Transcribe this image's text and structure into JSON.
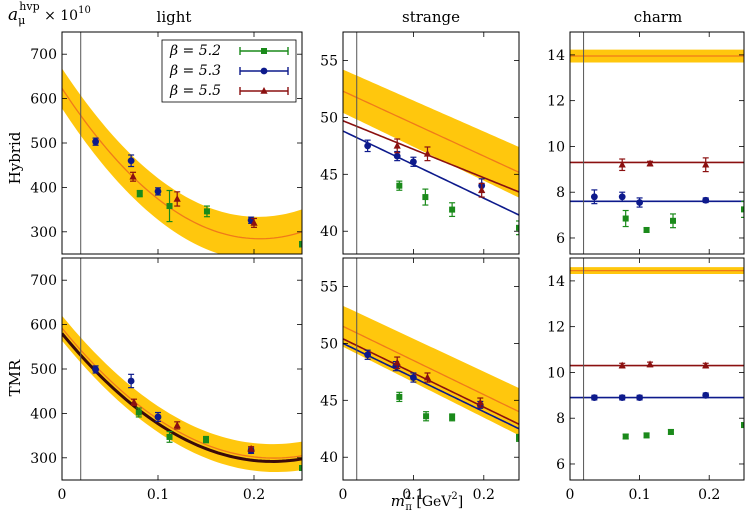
{
  "figure": {
    "corner_label": {
      "base": "a",
      "sub": "μ",
      "sup": "hvp",
      "tail": " × 10",
      "exp": "10"
    },
    "xlabel": {
      "base": "m",
      "sup": "2",
      "sub": "π",
      "unit": " [GeV",
      "unit_sup": "2",
      "unit_close": "]"
    },
    "column_titles": [
      "light",
      "strange",
      "charm"
    ],
    "row_labels": [
      "Hybrid",
      "TMR"
    ],
    "colors": {
      "b52": "#1a8a1a",
      "b53": "#0d1a8c",
      "b55": "#8b1010",
      "band": "#ffc400",
      "fit": "#f07a1a",
      "dark": "#3a0a0a"
    },
    "legend": [
      {
        "label": "β = 5.2",
        "series": "b52"
      },
      {
        "label": "β = 5.3",
        "series": "b53"
      },
      {
        "label": "β = 5.5",
        "series": "b55"
      }
    ],
    "physical_point_x": 0.0195
  },
  "chart_data": [
    {
      "id": "hybrid-light",
      "type": "scatter",
      "title": "light",
      "row": "Hybrid",
      "xlim": [
        0,
        0.25
      ],
      "ylim": [
        250,
        750
      ],
      "yticks": [
        300,
        400,
        500,
        600,
        700
      ],
      "xticks": [],
      "xtick_labels": [],
      "series": [
        {
          "name": "β = 5.2",
          "key": "b52",
          "marker": "square",
          "points": [
            [
              0.081,
              386,
              7
            ],
            [
              0.112,
              358,
              35
            ],
            [
              0.151,
              346,
              12
            ],
            [
              0.25,
              272,
              6
            ]
          ]
        },
        {
          "name": "β = 5.3",
          "key": "b53",
          "marker": "circle",
          "points": [
            [
              0.035,
              503,
              8
            ],
            [
              0.072,
              460,
              13
            ],
            [
              0.1,
              391,
              8
            ],
            [
              0.197,
              326,
              7
            ]
          ]
        },
        {
          "name": "β = 5.5",
          "key": "b55",
          "marker": "triangle",
          "points": [
            [
              0.074,
              424,
              10
            ],
            [
              0.12,
              374,
              16
            ],
            [
              0.2,
              320,
              10
            ]
          ]
        }
      ],
      "fits": [
        {
          "kind": "band",
          "c": [
            623,
            -3290,
            7990
          ],
          "width": [
            45,
            15,
            30
          ]
        }
      ]
    },
    {
      "id": "hybrid-strange",
      "type": "scatter",
      "title": "strange",
      "row": "Hybrid",
      "xlim": [
        0,
        0.25
      ],
      "ylim": [
        38,
        57.5
      ],
      "yticks": [
        40,
        45,
        50,
        55
      ],
      "xticks": [],
      "xtick_labels": [],
      "series": [
        {
          "name": "β = 5.2",
          "key": "b52",
          "marker": "square",
          "points": [
            [
              0.08,
              44.0,
              0.4
            ],
            [
              0.117,
              43.0,
              0.7
            ],
            [
              0.155,
              41.9,
              0.6
            ],
            [
              0.25,
              40.3,
              0.6
            ]
          ]
        },
        {
          "name": "β = 5.3",
          "key": "b53",
          "marker": "circle",
          "points": [
            [
              0.035,
              47.5,
              0.5
            ],
            [
              0.077,
              46.6,
              0.4
            ],
            [
              0.1,
              46.1,
              0.4
            ],
            [
              0.197,
              44.0,
              0.6
            ]
          ]
        },
        {
          "name": "β = 5.5",
          "key": "b55",
          "marker": "triangle",
          "points": [
            [
              0.077,
              47.5,
              0.6
            ],
            [
              0.12,
              46.8,
              0.6
            ],
            [
              0.197,
              43.6,
              0.6
            ]
          ]
        }
      ],
      "fits": [
        {
          "kind": "band",
          "c": [
            52.3,
            -28.5,
            0
          ],
          "width": [
            1.9,
            1.3,
            0
          ]
        },
        {
          "kind": "line",
          "key": "b55",
          "c": [
            49.7,
            -25.0,
            0
          ]
        },
        {
          "kind": "line",
          "key": "b53",
          "c": [
            48.8,
            -29.5,
            0
          ]
        }
      ]
    },
    {
      "id": "hybrid-charm",
      "type": "scatter",
      "title": "charm",
      "row": "Hybrid",
      "xlim": [
        0,
        0.25
      ],
      "ylim": [
        5.3,
        15
      ],
      "yticks": [
        6,
        8,
        10,
        12,
        14
      ],
      "xticks": [],
      "xtick_labels": [],
      "series": [
        {
          "name": "β = 5.2",
          "key": "b52",
          "marker": "square",
          "points": [
            [
              0.08,
              6.85,
              0.35
            ],
            [
              0.11,
              6.35,
              0.1
            ],
            [
              0.148,
              6.75,
              0.3
            ],
            [
              0.25,
              7.25,
              0.35
            ]
          ]
        },
        {
          "name": "β = 5.3",
          "key": "b53",
          "marker": "circle",
          "points": [
            [
              0.035,
              7.8,
              0.3
            ],
            [
              0.075,
              7.8,
              0.2
            ],
            [
              0.1,
              7.55,
              0.2
            ],
            [
              0.195,
              7.65,
              0.1
            ]
          ]
        },
        {
          "name": "β = 5.5",
          "key": "b55",
          "marker": "triangle",
          "points": [
            [
              0.075,
              9.2,
              0.25
            ],
            [
              0.115,
              9.25,
              0.1
            ],
            [
              0.195,
              9.2,
              0.3
            ]
          ]
        }
      ],
      "fits": [
        {
          "kind": "band",
          "c": [
            13.95,
            0,
            0
          ],
          "width": [
            0.28,
            0,
            0
          ]
        },
        {
          "kind": "line",
          "key": "b55",
          "c": [
            9.3,
            0,
            0
          ]
        },
        {
          "kind": "line",
          "key": "b53",
          "c": [
            7.6,
            0,
            0
          ]
        }
      ]
    },
    {
      "id": "tmr-light",
      "type": "scatter",
      "title": "",
      "row": "TMR",
      "xlim": [
        0,
        0.25
      ],
      "ylim": [
        250,
        750
      ],
      "yticks": [
        300,
        400,
        500,
        600,
        700
      ],
      "xticks": [
        0,
        0.1,
        0.2
      ],
      "xtick_labels": [
        "0",
        "0.1",
        "0.2"
      ],
      "series": [
        {
          "name": "β = 5.2",
          "key": "b52",
          "marker": "square",
          "points": [
            [
              0.08,
              402,
              10
            ],
            [
              0.112,
              347,
              12
            ],
            [
              0.15,
              341,
              7
            ],
            [
              0.25,
              277,
              5
            ]
          ]
        },
        {
          "name": "β = 5.3",
          "key": "b53",
          "marker": "circle",
          "points": [
            [
              0.035,
              499,
              8
            ],
            [
              0.072,
              473,
              15
            ],
            [
              0.1,
              392,
              10
            ],
            [
              0.197,
              316,
              6
            ]
          ]
        },
        {
          "name": "β = 5.5",
          "key": "b55",
          "marker": "triangle",
          "points": [
            [
              0.075,
              425,
              7
            ],
            [
              0.12,
              373,
              8
            ],
            [
              0.197,
              320,
              5
            ]
          ]
        }
      ],
      "fits": [
        {
          "kind": "band",
          "c": [
            592,
            -2650,
            6000
          ],
          "width": [
            28,
            10,
            25
          ]
        },
        {
          "kind": "line",
          "key": "dark",
          "c": [
            580,
            -2630,
            6000
          ],
          "thick": true
        }
      ]
    },
    {
      "id": "tmr-strange",
      "type": "scatter",
      "title": "",
      "row": "TMR",
      "xlim": [
        0,
        0.25
      ],
      "ylim": [
        38,
        57.5
      ],
      "yticks": [
        40,
        45,
        50,
        55
      ],
      "xticks": [
        0,
        0.1,
        0.2
      ],
      "xtick_labels": [
        "0",
        "0.1",
        "0.2"
      ],
      "series": [
        {
          "name": "β = 5.2",
          "key": "b52",
          "marker": "square",
          "points": [
            [
              0.08,
              45.3,
              0.4
            ],
            [
              0.118,
              43.6,
              0.4
            ],
            [
              0.155,
              43.5,
              0.3
            ],
            [
              0.25,
              41.7,
              0.3
            ]
          ]
        },
        {
          "name": "β = 5.3",
          "key": "b53",
          "marker": "circle",
          "points": [
            [
              0.035,
              49.0,
              0.4
            ],
            [
              0.075,
              48.0,
              0.4
            ],
            [
              0.1,
              47.0,
              0.4
            ],
            [
              0.195,
              44.6,
              0.3
            ]
          ]
        },
        {
          "name": "β = 5.5",
          "key": "b55",
          "marker": "triangle",
          "points": [
            [
              0.077,
              48.3,
              0.5
            ],
            [
              0.12,
              47.0,
              0.4
            ],
            [
              0.195,
              44.8,
              0.4
            ]
          ]
        }
      ],
      "fits": [
        {
          "kind": "band",
          "c": [
            51.5,
            -30.0,
            0
          ],
          "width": [
            1.8,
            1.1,
            0
          ]
        },
        {
          "kind": "line",
          "key": "b55",
          "c": [
            50.4,
            -30.0,
            0
          ]
        },
        {
          "kind": "line",
          "key": "b53",
          "c": [
            50.0,
            -30.0,
            0
          ]
        }
      ]
    },
    {
      "id": "tmr-charm",
      "type": "scatter",
      "title": "",
      "row": "TMR",
      "xlim": [
        0,
        0.25
      ],
      "ylim": [
        5.3,
        15
      ],
      "yticks": [
        6,
        8,
        10,
        12,
        14
      ],
      "xticks": [
        0,
        0.1,
        0.2
      ],
      "xtick_labels": [
        "0",
        "0.1",
        "0.2"
      ],
      "series": [
        {
          "name": "β = 5.2",
          "key": "b52",
          "marker": "square",
          "points": [
            [
              0.08,
              7.2,
              0.1
            ],
            [
              0.11,
              7.25,
              0.1
            ],
            [
              0.145,
              7.4,
              0.1
            ],
            [
              0.25,
              7.7,
              0.1
            ]
          ]
        },
        {
          "name": "β = 5.3",
          "key": "b53",
          "marker": "circle",
          "points": [
            [
              0.035,
              8.9,
              0.1
            ],
            [
              0.075,
              8.9,
              0.1
            ],
            [
              0.1,
              8.9,
              0.1
            ],
            [
              0.195,
              9.0,
              0.1
            ]
          ]
        },
        {
          "name": "β = 5.5",
          "key": "b55",
          "marker": "triangle",
          "points": [
            [
              0.075,
              10.3,
              0.1
            ],
            [
              0.115,
              10.35,
              0.1
            ],
            [
              0.195,
              10.3,
              0.1
            ]
          ]
        }
      ],
      "fits": [
        {
          "kind": "band",
          "c": [
            14.45,
            0,
            0
          ],
          "width": [
            0.15,
            0,
            0
          ]
        },
        {
          "kind": "line",
          "key": "b55",
          "c": [
            10.3,
            0,
            0
          ]
        },
        {
          "kind": "line",
          "key": "b53",
          "c": [
            8.9,
            0,
            0
          ]
        }
      ]
    }
  ]
}
